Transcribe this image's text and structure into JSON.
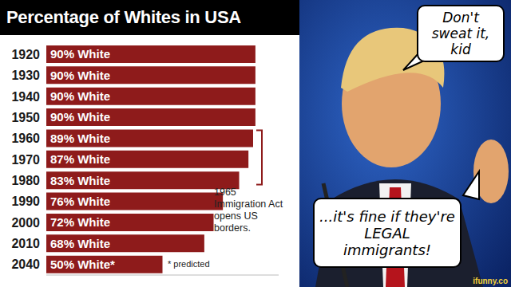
{
  "chart_data": {
    "type": "bar",
    "orientation": "horizontal",
    "title": "Percentage of Whites in USA",
    "categories": [
      "1920",
      "1930",
      "1940",
      "1950",
      "1960",
      "1970",
      "1980",
      "1990",
      "2000",
      "2010",
      "2040"
    ],
    "values": [
      90,
      90,
      90,
      90,
      89,
      87,
      83,
      76,
      72,
      68,
      50
    ],
    "value_labels": [
      "90% White",
      "90% White",
      "90% White",
      "90% White",
      "89% White",
      "87% White",
      "83% White",
      "76% White",
      "72% White",
      "68% White",
      "50% White*"
    ],
    "color": "#8e1b1b",
    "xlim": [
      0,
      100
    ],
    "tick_labels": "y",
    "data_labels": true,
    "grid": false,
    "annotations": [
      "1965 Immigration Act opens US borders.",
      "* predicted"
    ]
  },
  "speech_bubbles": [
    "Don't sweat it, kid",
    "...it's fine if they're LEGAL immigrants!"
  ],
  "watermark": "ifunny.co"
}
